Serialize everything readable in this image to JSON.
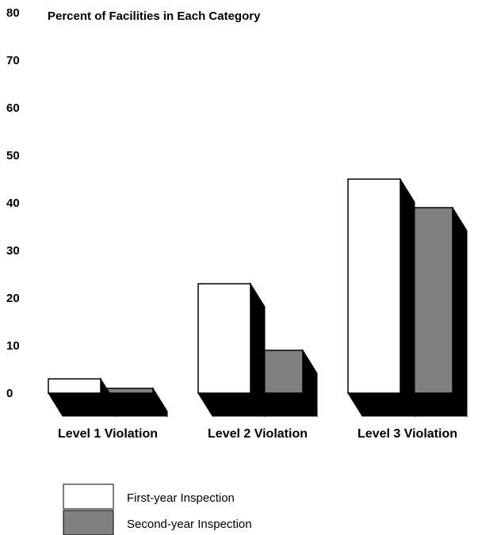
{
  "chart_data": {
    "type": "bar",
    "title": "Percent of Facilities in Each Category",
    "xlabel": "",
    "ylabel": "",
    "ylim": [
      0,
      80
    ],
    "yticks": [
      "80",
      "70",
      "60",
      "50",
      "40",
      "30",
      "20",
      "10",
      "0"
    ],
    "categories": [
      "Level 1 Violation",
      "Level 2 Violation",
      "Level 3 Violation"
    ],
    "series": [
      {
        "name": "First-year Inspection",
        "values": [
          3,
          23,
          45
        ],
        "color": "#ffffff"
      },
      {
        "name": "Second-year Inspection",
        "values": [
          1,
          9,
          39
        ],
        "color": "#808080"
      }
    ],
    "grid": false,
    "legend_position": "bottom-left",
    "style": "3d"
  }
}
